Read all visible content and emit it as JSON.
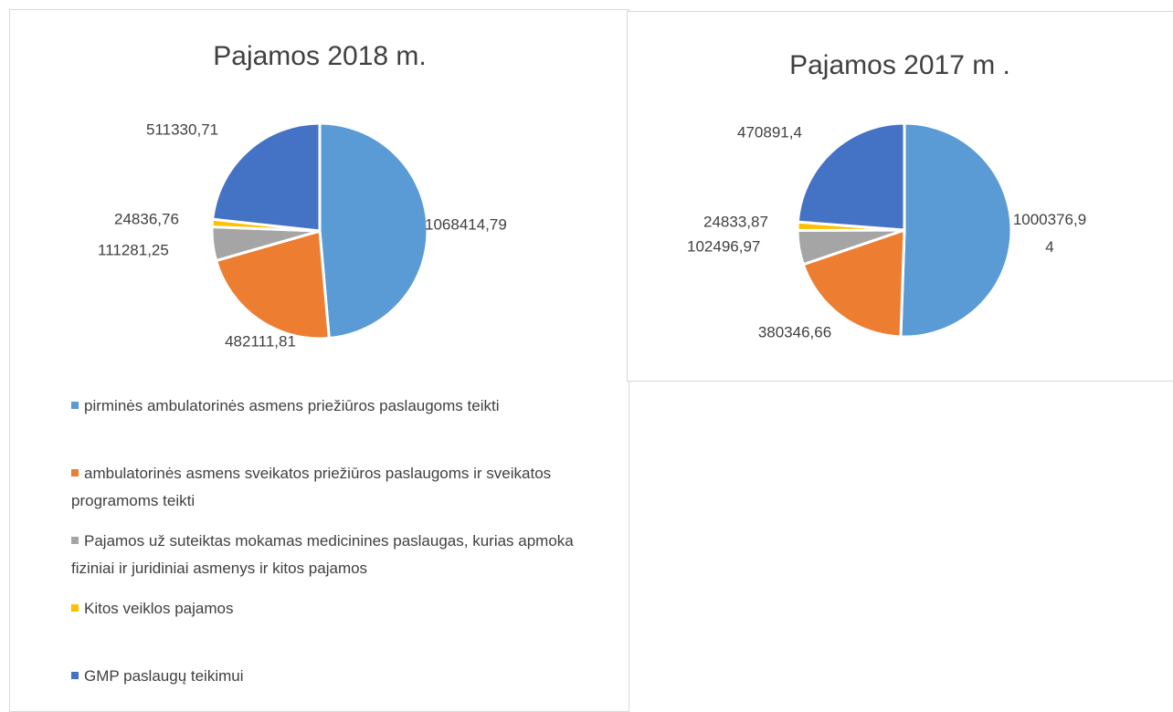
{
  "chart_data": [
    {
      "type": "pie",
      "title": "Pajamos 2018 m.",
      "categories": [
        "pirminės ambulatorinės asmens priežiūros paslaugoms teikti",
        "ambulatorinės asmens sveikatos priežiūros paslaugoms ir sveikatos programoms teikti",
        "Pajamos už suteiktas mokamas medicinines paslaugas, kurias apmoka fiziniai ir juridiniai asmenys ir kitos pajamos",
        "Kitos veiklos pajamos",
        "GMP paslaugų teikimui"
      ],
      "values": [
        1068414.79,
        482111.81,
        111281.25,
        24836.76,
        511330.71
      ],
      "value_labels": [
        "1068414,79",
        "482111,81",
        "111281,25",
        "24836,76",
        "511330,71"
      ],
      "colors": [
        "#5b9bd5",
        "#ed7d31",
        "#a5a5a5",
        "#ffc000",
        "#4472c4"
      ],
      "legend": "bottom"
    },
    {
      "type": "pie",
      "title": "Pajamos 2017 m .",
      "values": [
        1000376.94,
        380346.66,
        102496.97,
        24833.87,
        470891.4
      ],
      "value_labels": [
        "1000376,94",
        "380346,66",
        "102496,97",
        "24833,87",
        "470891,4"
      ],
      "colors": [
        "#5b9bd5",
        "#ed7d31",
        "#a5a5a5",
        "#ffc000",
        "#4472c4"
      ]
    }
  ]
}
